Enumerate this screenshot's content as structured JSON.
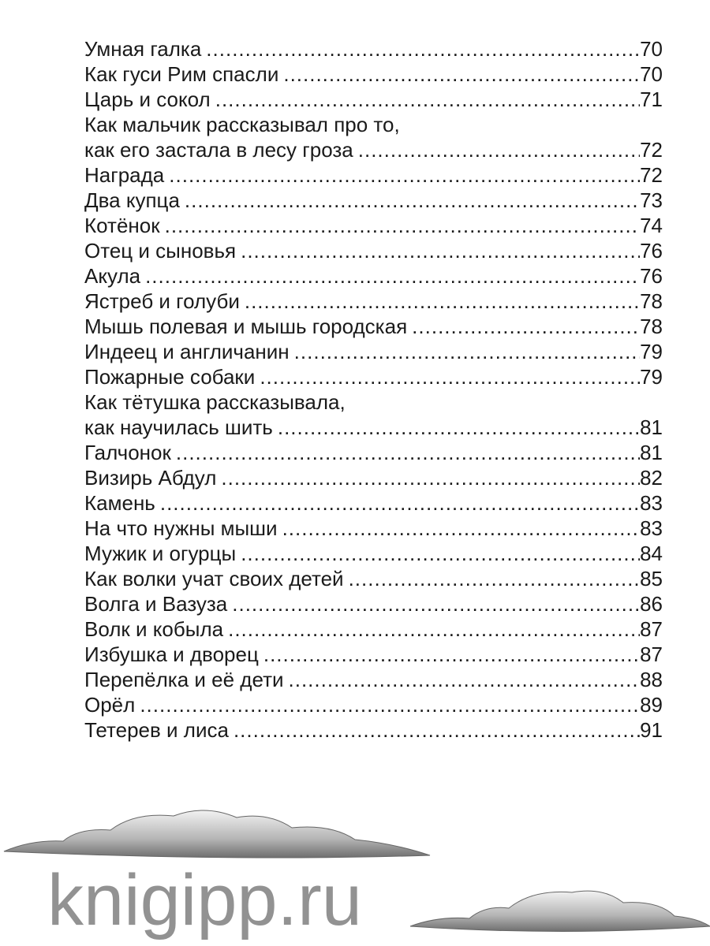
{
  "toc": [
    {
      "title": "Умная галка",
      "page": "70"
    },
    {
      "title": "Как гуси Рим спасли",
      "page": "70"
    },
    {
      "title": "Царь и сокол",
      "page": "71"
    },
    {
      "title": "Как мальчик рассказывал про то,",
      "page": ""
    },
    {
      "title": "как его застала в лесу гроза",
      "page": "72"
    },
    {
      "title": "Награда",
      "page": "72"
    },
    {
      "title": "Два купца",
      "page": "73"
    },
    {
      "title": "Котёнок",
      "page": "74"
    },
    {
      "title": "Отец и сыновья",
      "page": "76"
    },
    {
      "title": "Акула",
      "page": "76"
    },
    {
      "title": "Ястреб и голуби",
      "page": "78"
    },
    {
      "title": "Мышь полевая и мышь городская",
      "page": "78"
    },
    {
      "title": "Индеец и англичанин",
      "page": "79"
    },
    {
      "title": "Пожарные собаки",
      "page": "79"
    },
    {
      "title": "Как тётушка рассказывала,",
      "page": ""
    },
    {
      "title": "как научилась шить",
      "page": "81"
    },
    {
      "title": "Галчонок",
      "page": "81"
    },
    {
      "title": "Визирь Абдул",
      "page": "82"
    },
    {
      "title": "Камень",
      "page": "83"
    },
    {
      "title": "На что нужны мыши",
      "page": "83"
    },
    {
      "title": "Мужик и огурцы",
      "page": "84"
    },
    {
      "title": "Как волки учат своих детей",
      "page": "85"
    },
    {
      "title": "Волга и Вазуза",
      "page": "86"
    },
    {
      "title": "Волк и кобыла",
      "page": "87"
    },
    {
      "title": "Избушка и дворец",
      "page": "87"
    },
    {
      "title": "Перепёлка и её дети",
      "page": "88"
    },
    {
      "title": "Орёл",
      "page": "89"
    },
    {
      "title": "Тетерев и лиса",
      "page": "91"
    }
  ],
  "watermark": "knigipp.ru"
}
